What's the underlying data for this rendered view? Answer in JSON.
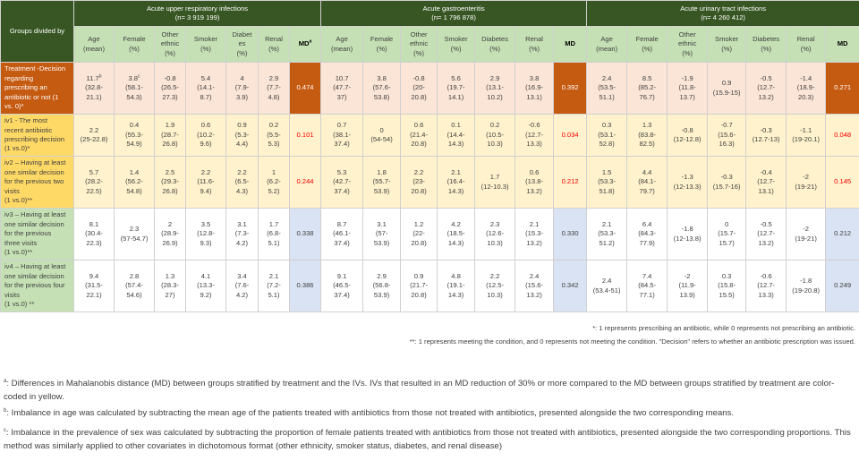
{
  "table": {
    "corner_label": "Groups divided by",
    "groups": [
      {
        "title": "Acute upper respiratory infections",
        "n": "(n= 3 919 199)",
        "md_label": "MD",
        "md_sup": "a"
      },
      {
        "title": "Acute gastroenteritis",
        "n": "(n= 1 796 878)",
        "md_label": "MD",
        "md_sup": ""
      },
      {
        "title": "Acute urinary tract infections",
        "n": "(n= 4 260 412)",
        "md_label": "MD",
        "md_sup": ""
      }
    ],
    "columns": [
      [
        "Age",
        "(mean)"
      ],
      [
        "Female",
        "(%)"
      ],
      [
        "Other",
        "ethnic",
        "(%)"
      ],
      [
        "Smoker",
        "(%)"
      ],
      [
        "Diabetes",
        "(%)"
      ],
      [
        "Renal",
        "(%)"
      ]
    ],
    "uri_columns": [
      [
        "Age",
        "(mean)"
      ],
      [
        "Female",
        "(%)"
      ],
      [
        "Other",
        "ethnic",
        "(%)"
      ],
      [
        "Smoker",
        "(%)"
      ],
      [
        "Diabet",
        "es",
        "(%)"
      ],
      [
        "Renal",
        "(%)"
      ]
    ],
    "rows": [
      {
        "label": [
          "Treatment -Decision",
          "regarding",
          "prescribing an",
          "antibiotic or not (1",
          "vs. 0)*"
        ],
        "style": "treat",
        "cells": [
          [
            [
              "11.7",
              "b",
              "(32.8-",
              "21.1)"
            ],
            [
              "3.8",
              "c",
              "(58.1-",
              "54.3)"
            ],
            [
              "-0.8",
              "",
              "(26.5-",
              "27.3)"
            ],
            [
              "5.4",
              "",
              "(14.1-",
              "8.7)"
            ],
            [
              "4",
              "",
              "(7.9-",
              "3.9)"
            ],
            [
              "2.9",
              "",
              "(7.7-",
              "4.8)"
            ]
          ],
          [
            [
              "10.7",
              "",
              "(47.7-",
              "37)"
            ],
            [
              "3.8",
              "",
              "(57.6-",
              "53.8)"
            ],
            [
              "-0.8",
              "",
              "(20-",
              "20.8)"
            ],
            [
              "5.6",
              "",
              "(19.7-",
              "14.1)"
            ],
            [
              "2.9",
              "",
              "(13.1-",
              "10.2)"
            ],
            [
              "3.8",
              "",
              "(16.9-",
              "13.1)"
            ]
          ],
          [
            [
              "2.4",
              "",
              "(53.5-",
              "51.1)"
            ],
            [
              "8.5",
              "",
              "(85.2-",
              "76.7)"
            ],
            [
              "-1.9",
              "",
              "(11.8-",
              "13.7)"
            ],
            [
              "0.9",
              "",
              "(15.9-15)",
              ""
            ],
            [
              "-0.5",
              "",
              "(12.7-",
              "13.2)"
            ],
            [
              "-1.4",
              "",
              "(18.9-",
              "20.3)"
            ]
          ]
        ],
        "md": [
          "0.474",
          "0.392",
          "0.271"
        ]
      },
      {
        "label": [
          "iv1 - The most",
          "recent antibiotic",
          "prescribing decision",
          "(1 vs.0)*"
        ],
        "style": "yellow",
        "cells": [
          [
            [
              "2.2",
              "",
              "(25-22.8)",
              ""
            ],
            [
              "0.4",
              "",
              "(55.3-",
              "54.9)"
            ],
            [
              "1.9",
              "",
              "(28.7-",
              "26.8)"
            ],
            [
              "0.6",
              "",
              "(10.2-",
              "9.6)"
            ],
            [
              "0.9",
              "",
              "(5.3-",
              "4.4)"
            ],
            [
              "0.2",
              "",
              "(5.5-",
              "5.3)"
            ]
          ],
          [
            [
              "0.7",
              "",
              "(38.1-",
              "37.4)"
            ],
            [
              "0",
              "",
              "(54-54)",
              ""
            ],
            [
              "0.6",
              "",
              "(21.4-",
              "20.8)"
            ],
            [
              "0.1",
              "",
              "(14.4-",
              "14.3)"
            ],
            [
              "0.2",
              "",
              "(10.5-",
              "10.3)"
            ],
            [
              "-0.6",
              "",
              "(12.7-",
              "13.3)"
            ]
          ],
          [
            [
              "0.3",
              "",
              "(53.1-",
              "52.8)"
            ],
            [
              "1.3",
              "",
              "(83.8-",
              "82.5)"
            ],
            [
              "-0.8",
              "",
              "(12-12.8)",
              ""
            ],
            [
              "-0.7",
              "",
              "(15.6-",
              "16.3)"
            ],
            [
              "-0.3",
              "",
              "(12.7-13)",
              ""
            ],
            [
              "-1.1",
              "",
              "(19-20.1)",
              ""
            ]
          ]
        ],
        "md": [
          "0.101",
          "0.034",
          "0.048"
        ]
      },
      {
        "label": [
          "iv2 – Having at least",
          "one similar decision",
          "for the previous two",
          "visits",
          "(1 vs.0)**"
        ],
        "style": "yellow",
        "cells": [
          [
            [
              "5.7",
              "",
              "(28.2-",
              "22.5)"
            ],
            [
              "1.4",
              "",
              "(56.2-",
              "54.8)"
            ],
            [
              "2.5",
              "",
              "(29.3-",
              "26.8)"
            ],
            [
              "2.2",
              "",
              "(11.6-",
              "9.4)"
            ],
            [
              "2.2",
              "",
              "(6.5-",
              "4.3)"
            ],
            [
              "1",
              "",
              "(6.2-",
              "5.2)"
            ]
          ],
          [
            [
              "5.3",
              "",
              "(42.7-",
              "37.4)"
            ],
            [
              "1.8",
              "",
              "(55.7-",
              "53.9)"
            ],
            [
              "2.2",
              "",
              "(23-",
              "20.8)"
            ],
            [
              "2.1",
              "",
              "(16.4-",
              "14.3)"
            ],
            [
              "1.7",
              "",
              "(12-10.3)",
              ""
            ],
            [
              "0.6",
              "",
              "(13.8-",
              "13.2)"
            ]
          ],
          [
            [
              "1.5",
              "",
              "(53.3-",
              "51.8)"
            ],
            [
              "4.4",
              "",
              "(84.1-",
              "79.7)"
            ],
            [
              "-1.3",
              "",
              "(12-13.3)",
              ""
            ],
            [
              "-0.3",
              "",
              "(15.7-16)",
              ""
            ],
            [
              "-0.4",
              "",
              "(12.7-",
              "13.1)"
            ],
            [
              "-2",
              "",
              "(19-21)",
              ""
            ]
          ]
        ],
        "md": [
          "0.244",
          "0.212",
          "0.145"
        ]
      },
      {
        "label": [
          "iv3 – Having at least",
          "one similar decision",
          "for the previous",
          "three visits",
          "(1 vs.0)**"
        ],
        "style": "white",
        "cells": [
          [
            [
              "8.1",
              "",
              "(30.4-",
              "22.3)"
            ],
            [
              "2.3",
              "",
              "(57-54.7)",
              ""
            ],
            [
              "2",
              "",
              "(28.9-",
              "26.9)"
            ],
            [
              "3.5",
              "",
              "(12.8-",
              "9.3)"
            ],
            [
              "3.1",
              "",
              "(7.3-",
              "4.2)"
            ],
            [
              "1.7",
              "",
              "(6.8-",
              "5.1)"
            ]
          ],
          [
            [
              "8.7",
              "",
              "(46.1-",
              "37.4)"
            ],
            [
              "3.1",
              "",
              "(57-",
              "53.9)"
            ],
            [
              "1.2",
              "",
              "(22-",
              "20.8)"
            ],
            [
              "4.2",
              "",
              "(18.5-",
              "14.3)"
            ],
            [
              "2.3",
              "",
              "(12.6-",
              "10.3)"
            ],
            [
              "2.1",
              "",
              "(15.3-",
              "13.2)"
            ]
          ],
          [
            [
              "2.1",
              "",
              "(53.3-",
              "51.2)"
            ],
            [
              "6.4",
              "",
              "(84.3-",
              "77.9)"
            ],
            [
              "-1.8",
              "",
              "(12-13.8)",
              ""
            ],
            [
              "0",
              "",
              "(15.7-",
              "15.7)"
            ],
            [
              "-0.5",
              "",
              "(12.7-",
              "13.2)"
            ],
            [
              "-2",
              "",
              "(19-21)",
              ""
            ]
          ]
        ],
        "md": [
          "0.338",
          "0.330",
          "0.212"
        ]
      },
      {
        "label": [
          "iv4 – Having at least",
          "one similar decision",
          "for the previous four",
          "visits",
          "(1 vs.0) **"
        ],
        "style": "white",
        "cells": [
          [
            [
              "9.4",
              "",
              "(31.5-",
              "22.1)"
            ],
            [
              "2.8",
              "",
              "(57.4-",
              "54.6)"
            ],
            [
              "1.3",
              "",
              "(28.3-",
              "27)"
            ],
            [
              "4.1",
              "",
              "(13.3-",
              "9.2)"
            ],
            [
              "3.4",
              "",
              "(7.6-",
              "4.2)"
            ],
            [
              "2.1",
              "",
              "(7.2-",
              "5.1)"
            ]
          ],
          [
            [
              "9.1",
              "",
              "(46.5-",
              "37.4)"
            ],
            [
              "2.9",
              "",
              "(56.8-",
              "53.9)"
            ],
            [
              "0.9",
              "",
              "(21.7-",
              "20.8)"
            ],
            [
              "4.8",
              "",
              "(19.1-",
              "14.3)"
            ],
            [
              "2.2",
              "",
              "(12.5-",
              "10.3)"
            ],
            [
              "2.4",
              "",
              "(15.6-",
              "13.2)"
            ]
          ],
          [
            [
              "2.4",
              "",
              "(53.4-51)",
              ""
            ],
            [
              "7.4",
              "",
              "(84.5-",
              "77.1)"
            ],
            [
              "-2",
              "",
              "(11.9-",
              "13.9)"
            ],
            [
              "0.3",
              "",
              "(15.8-",
              "15.5)"
            ],
            [
              "-0.6",
              "",
              "(12.7-",
              "13.3)"
            ],
            [
              "-1.8",
              "",
              "(19-20.8)",
              ""
            ]
          ]
        ],
        "md": [
          "0.386",
          "0.342",
          "0.249"
        ]
      }
    ]
  },
  "footnotes": {
    "star": "*: 1 represents prescribing an antibiotic, while 0 represents not prescribing an antibiotic.",
    "double_star": "**: 1 represents meeting the condition, and 0 represents not meeting the condition. \"Decision\" refers to whether an antibiotic prescription was issued."
  },
  "notes": [
    {
      "mark": "a",
      "text": ": Differences in Mahalanobis distance (MD) between groups stratified by treatment and the IVs. IVs that resulted in an MD reduction of 30% or more compared to the MD between groups stratified by treatment are color-coded in yellow."
    },
    {
      "mark": "b",
      "text": ": Imbalance in age was calculated by subtracting the mean age of the patients treated with antibiotics from those not treated with antibiotics, presented alongside the two corresponding means."
    },
    {
      "mark": "c",
      "text": ": Imbalance in the prevalence of sex was calculated by subtracting the proportion of female patients treated with antibiotics from those not treated with antibiotics, presented alongside the two corresponding proportions. This method was similarly applied to other covariates in dichotomous format (other ethnicity, smoker status, diabetes, and renal disease)"
    }
  ],
  "colors": {
    "header_dark_green": "#375623",
    "header_light_green": "#c5e0b4",
    "treatment_orange": "#c55a11",
    "treatment_row_bg": "#fbe5d6",
    "iv_yellow_label": "#ffd966",
    "iv_yellow_row": "#fff2cc",
    "md_blue": "#dae3f3",
    "md_highlight_red": "#ff0000"
  }
}
